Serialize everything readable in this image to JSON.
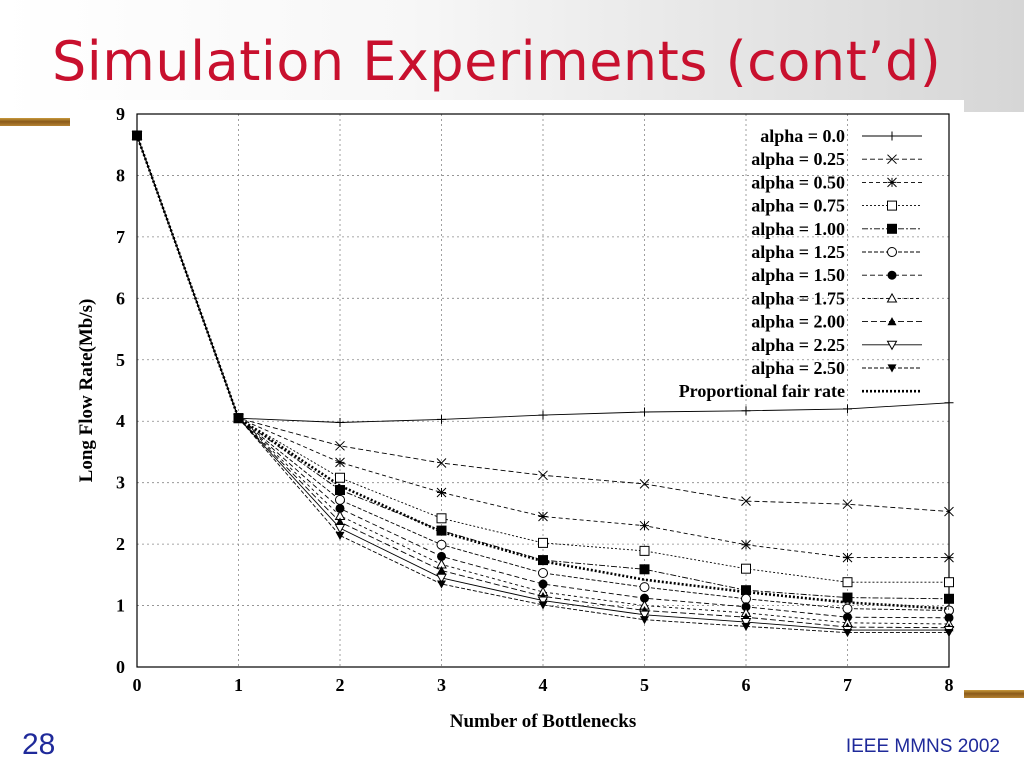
{
  "slide": {
    "title": "Simulation Experiments (cont’d)",
    "page_number": "28",
    "footer": "IEEE MMNS 2002"
  },
  "chart_data": {
    "type": "line",
    "title": "",
    "xlabel": "Number of Bottlenecks",
    "ylabel": "Long Flow Rate(Mb/s)",
    "xlim": [
      0,
      8
    ],
    "ylim": [
      0,
      9
    ],
    "grid": true,
    "legend_position": "top-right",
    "x": [
      0,
      1,
      2,
      3,
      4,
      5,
      6,
      7,
      8
    ],
    "series": [
      {
        "name": "alpha = 0.0",
        "marker": "plus",
        "dash": "",
        "values": [
          8.65,
          4.05,
          3.98,
          4.03,
          4.1,
          4.15,
          4.17,
          4.2,
          4.3
        ]
      },
      {
        "name": "alpha = 0.25",
        "marker": "x",
        "dash": "5,3",
        "values": [
          8.65,
          4.05,
          3.6,
          3.32,
          3.12,
          2.98,
          2.7,
          2.65,
          2.53
        ]
      },
      {
        "name": "alpha = 0.50",
        "marker": "star",
        "dash": "4,3",
        "values": [
          8.65,
          4.05,
          3.33,
          2.84,
          2.45,
          2.3,
          1.99,
          1.78,
          1.78
        ]
      },
      {
        "name": "alpha = 0.75",
        "marker": "square-open",
        "dash": "2,2",
        "values": [
          8.65,
          4.05,
          3.08,
          2.42,
          2.02,
          1.89,
          1.6,
          1.38,
          1.38
        ]
      },
      {
        "name": "alpha = 1.00",
        "marker": "square-filled",
        "dash": "6,2,2,2",
        "values": [
          8.65,
          4.05,
          2.88,
          2.22,
          1.74,
          1.59,
          1.25,
          1.13,
          1.11
        ]
      },
      {
        "name": "alpha = 1.25",
        "marker": "circle-open",
        "dash": "4,2",
        "values": [
          8.65,
          4.05,
          2.72,
          1.99,
          1.53,
          1.3,
          1.11,
          0.95,
          0.92
        ]
      },
      {
        "name": "alpha = 1.50",
        "marker": "circle-filled",
        "dash": "5,3",
        "values": [
          8.65,
          4.05,
          2.58,
          1.8,
          1.35,
          1.12,
          0.98,
          0.81,
          0.8
        ]
      },
      {
        "name": "alpha = 1.75",
        "marker": "triangle-open",
        "dash": "3,3",
        "values": [
          8.65,
          4.05,
          2.46,
          1.67,
          1.22,
          1.0,
          0.88,
          0.72,
          0.7
        ]
      },
      {
        "name": "alpha = 2.00",
        "marker": "triangle-filled",
        "dash": "6,3",
        "values": [
          8.65,
          4.05,
          2.36,
          1.57,
          1.15,
          0.92,
          0.81,
          0.65,
          0.64
        ]
      },
      {
        "name": "alpha = 2.25",
        "marker": "tri-down-open",
        "dash": "",
        "values": [
          8.65,
          4.05,
          2.26,
          1.45,
          1.08,
          0.85,
          0.73,
          0.6,
          0.6
        ]
      },
      {
        "name": "alpha = 2.50",
        "marker": "tri-down-filled",
        "dash": "4,2",
        "values": [
          8.65,
          4.05,
          2.14,
          1.35,
          1.01,
          0.77,
          0.66,
          0.56,
          0.56
        ]
      },
      {
        "name": "Proportional fair rate",
        "marker": "none",
        "dash": "2,2",
        "bold": true,
        "values": [
          8.65,
          4.05,
          2.95,
          2.2,
          1.72,
          1.42,
          1.22,
          1.05,
          0.95
        ]
      }
    ]
  }
}
